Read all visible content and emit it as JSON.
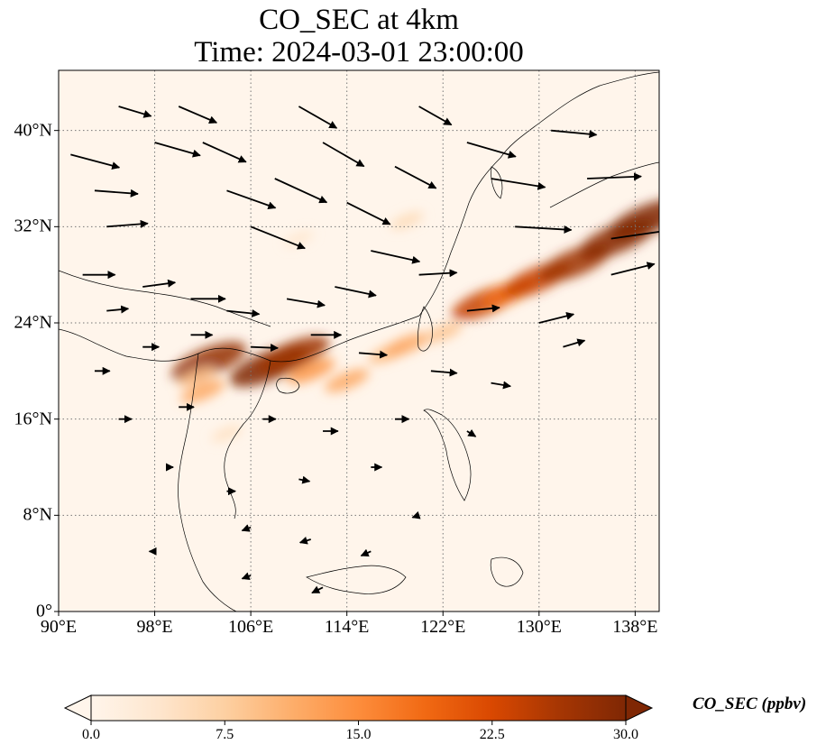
{
  "title_line1": "CO_SEC at 4km",
  "title_line2": "Time: 2024-03-01 23:00:00",
  "map": {
    "lon_range": [
      90,
      140
    ],
    "lat_range": [
      0,
      45
    ],
    "gridlines": "dotted",
    "xticks": [
      {
        "value": 90,
        "label": "90°E"
      },
      {
        "value": 98,
        "label": "98°E"
      },
      {
        "value": 106,
        "label": "106°E"
      },
      {
        "value": 114,
        "label": "114°E"
      },
      {
        "value": 122,
        "label": "122°E"
      },
      {
        "value": 130,
        "label": "130°E"
      },
      {
        "value": 138,
        "label": "138°E"
      }
    ],
    "yticks": [
      {
        "value": 0,
        "label": "0°"
      },
      {
        "value": 8,
        "label": "8°N"
      },
      {
        "value": 16,
        "label": "16°N"
      },
      {
        "value": 24,
        "label": "24°N"
      },
      {
        "value": 32,
        "label": "32°N"
      },
      {
        "value": 40,
        "label": "40°N"
      }
    ],
    "background_color": "#fff5eb",
    "plume_points": [
      {
        "lon": 102.5,
        "lat": 20.8,
        "value": 28
      },
      {
        "lon": 101.5,
        "lat": 19.5,
        "value": 9
      },
      {
        "lon": 102.0,
        "lat": 18.3,
        "value": 12
      },
      {
        "lon": 107.5,
        "lat": 20.4,
        "value": 30
      },
      {
        "lon": 109.5,
        "lat": 21.3,
        "value": 27
      },
      {
        "lon": 111.0,
        "lat": 20.0,
        "value": 14
      },
      {
        "lon": 114.0,
        "lat": 19.2,
        "value": 12
      },
      {
        "lon": 117.5,
        "lat": 21.5,
        "value": 10
      },
      {
        "lon": 119.0,
        "lat": 22.2,
        "value": 12
      },
      {
        "lon": 122.0,
        "lat": 23.2,
        "value": 9
      },
      {
        "lon": 125.5,
        "lat": 25.7,
        "value": 24
      },
      {
        "lon": 127.5,
        "lat": 26.5,
        "value": 18
      },
      {
        "lon": 129.8,
        "lat": 27.6,
        "value": 24
      },
      {
        "lon": 133.0,
        "lat": 29.0,
        "value": 27
      },
      {
        "lon": 136.5,
        "lat": 31.0,
        "value": 29
      },
      {
        "lon": 139.0,
        "lat": 32.6,
        "value": 30
      },
      {
        "lon": 119.0,
        "lat": 32.5,
        "value": 6
      },
      {
        "lon": 110.0,
        "lat": 31.0,
        "value": 4
      },
      {
        "lon": 104.0,
        "lat": 14.8,
        "value": 5
      }
    ],
    "wind_vectors": [
      {
        "lon": 91,
        "lat": 38,
        "u": 4.5,
        "v": -1.2
      },
      {
        "lon": 93,
        "lat": 35,
        "u": 4.0,
        "v": -0.3
      },
      {
        "lon": 94,
        "lat": 32,
        "u": 3.8,
        "v": 0.3
      },
      {
        "lon": 95,
        "lat": 42,
        "u": 3.0,
        "v": -0.9
      },
      {
        "lon": 98,
        "lat": 39,
        "u": 4.2,
        "v": -1.2
      },
      {
        "lon": 100,
        "lat": 42,
        "u": 3.5,
        "v": -1.5
      },
      {
        "lon": 102,
        "lat": 39,
        "u": 4.0,
        "v": -1.8
      },
      {
        "lon": 104,
        "lat": 35,
        "u": 4.5,
        "v": -1.6
      },
      {
        "lon": 106,
        "lat": 32,
        "u": 5.0,
        "v": -2.0
      },
      {
        "lon": 108,
        "lat": 36,
        "u": 4.8,
        "v": -2.2
      },
      {
        "lon": 110,
        "lat": 42,
        "u": 3.5,
        "v": -2.0
      },
      {
        "lon": 112,
        "lat": 39,
        "u": 3.8,
        "v": -2.2
      },
      {
        "lon": 114,
        "lat": 34,
        "u": 4.0,
        "v": -2.0
      },
      {
        "lon": 116,
        "lat": 30,
        "u": 4.5,
        "v": -1.0
      },
      {
        "lon": 118,
        "lat": 37,
        "u": 3.8,
        "v": -2.0
      },
      {
        "lon": 120,
        "lat": 42,
        "u": 3.0,
        "v": -1.7
      },
      {
        "lon": 124,
        "lat": 39,
        "u": 4.5,
        "v": -1.3
      },
      {
        "lon": 126,
        "lat": 36,
        "u": 5.0,
        "v": -0.8
      },
      {
        "lon": 128,
        "lat": 32,
        "u": 5.2,
        "v": -0.3
      },
      {
        "lon": 131,
        "lat": 40,
        "u": 4.2,
        "v": -0.4
      },
      {
        "lon": 134,
        "lat": 36,
        "u": 5.0,
        "v": 0.2
      },
      {
        "lon": 136,
        "lat": 31,
        "u": 5.5,
        "v": 0.8
      },
      {
        "lon": 136,
        "lat": 28,
        "u": 4.0,
        "v": 1.0
      },
      {
        "lon": 92,
        "lat": 28,
        "u": 3.0,
        "v": 0.0
      },
      {
        "lon": 94,
        "lat": 25,
        "u": 2.0,
        "v": 0.2
      },
      {
        "lon": 97,
        "lat": 27,
        "u": 3.0,
        "v": 0.4
      },
      {
        "lon": 101,
        "lat": 26,
        "u": 3.2,
        "v": 0.0
      },
      {
        "lon": 104,
        "lat": 25,
        "u": 3.0,
        "v": -0.3
      },
      {
        "lon": 109,
        "lat": 26,
        "u": 3.5,
        "v": -0.6
      },
      {
        "lon": 113,
        "lat": 27,
        "u": 3.8,
        "v": -0.8
      },
      {
        "lon": 120,
        "lat": 28,
        "u": 3.5,
        "v": 0.2
      },
      {
        "lon": 124,
        "lat": 25,
        "u": 3.0,
        "v": 0.3
      },
      {
        "lon": 130,
        "lat": 24,
        "u": 3.2,
        "v": 0.8
      },
      {
        "lon": 93,
        "lat": 20,
        "u": 1.4,
        "v": 0.0
      },
      {
        "lon": 97,
        "lat": 22,
        "u": 1.5,
        "v": 0.0
      },
      {
        "lon": 101,
        "lat": 23,
        "u": 2.0,
        "v": 0.0
      },
      {
        "lon": 106,
        "lat": 22,
        "u": 2.5,
        "v": -0.1
      },
      {
        "lon": 111,
        "lat": 23,
        "u": 2.8,
        "v": 0.0
      },
      {
        "lon": 115,
        "lat": 21.5,
        "u": 2.6,
        "v": -0.2
      },
      {
        "lon": 121,
        "lat": 20,
        "u": 2.4,
        "v": -0.2
      },
      {
        "lon": 126,
        "lat": 19,
        "u": 1.8,
        "v": -0.3
      },
      {
        "lon": 132,
        "lat": 22,
        "u": 2.0,
        "v": 0.6
      },
      {
        "lon": 95,
        "lat": 16,
        "u": 1.2,
        "v": 0.0
      },
      {
        "lon": 100,
        "lat": 17,
        "u": 1.4,
        "v": 0.0
      },
      {
        "lon": 107,
        "lat": 16,
        "u": 1.2,
        "v": 0.0
      },
      {
        "lon": 112,
        "lat": 15,
        "u": 1.4,
        "v": 0.0
      },
      {
        "lon": 118,
        "lat": 16,
        "u": 1.3,
        "v": 0.0
      },
      {
        "lon": 124,
        "lat": 15,
        "u": 0.8,
        "v": -0.5
      },
      {
        "lon": 99,
        "lat": 12,
        "u": 0.6,
        "v": 0.0
      },
      {
        "lon": 104,
        "lat": 10,
        "u": 0.8,
        "v": 0.0
      },
      {
        "lon": 110,
        "lat": 11,
        "u": 1.0,
        "v": -0.2
      },
      {
        "lon": 116,
        "lat": 12,
        "u": 1.0,
        "v": 0.0
      },
      {
        "lon": 106,
        "lat": 7,
        "u": -0.8,
        "v": -0.3
      },
      {
        "lon": 111,
        "lat": 6,
        "u": -1.0,
        "v": -0.3
      },
      {
        "lon": 116,
        "lat": 5,
        "u": -0.9,
        "v": -0.4
      },
      {
        "lon": 112,
        "lat": 2,
        "u": -1.0,
        "v": -0.5
      },
      {
        "lon": 106,
        "lat": 3,
        "u": -0.8,
        "v": -0.3
      },
      {
        "lon": 120,
        "lat": 8,
        "u": -0.6,
        "v": -0.2
      },
      {
        "lon": 98,
        "lat": 5,
        "u": -0.5,
        "v": 0.0
      }
    ]
  },
  "colorbar": {
    "label": "CO_SEC (ppbv)",
    "min": 0,
    "max": 30,
    "extend": "both",
    "colormap": [
      "#fff5eb",
      "#fee6ce",
      "#fdd0a2",
      "#fdae6b",
      "#fd8d3c",
      "#f16913",
      "#d94801",
      "#a63603",
      "#7f2704"
    ],
    "ticks": [
      {
        "value": 0,
        "label": "0.0"
      },
      {
        "value": 7.5,
        "label": "7.5"
      },
      {
        "value": 15,
        "label": "15.0"
      },
      {
        "value": 22.5,
        "label": "22.5"
      },
      {
        "value": 30,
        "label": "30.0"
      }
    ]
  }
}
